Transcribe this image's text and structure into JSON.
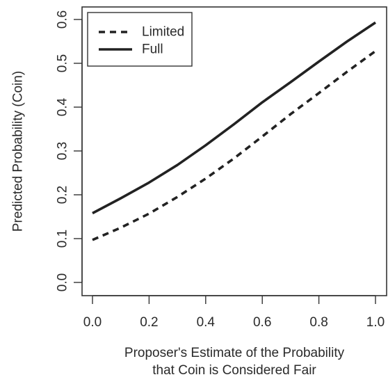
{
  "chart_data": {
    "type": "line",
    "title": "",
    "xlabel": [
      "Proposer's Estimate of the Probability",
      "that Coin is Considered Fair"
    ],
    "ylabel": "Predicted Probability (Coin)",
    "xlim": [
      0.0,
      1.0
    ],
    "ylim": [
      0.0,
      0.6
    ],
    "xticks": [
      "0.0",
      "0.2",
      "0.4",
      "0.6",
      "0.8",
      "1.0"
    ],
    "yticks": [
      "0.0",
      "0.1",
      "0.2",
      "0.3",
      "0.4",
      "0.5",
      "0.6"
    ],
    "legend_position": "top-left",
    "grid": false,
    "series": [
      {
        "name": "Limited",
        "style": "dashed",
        "color": "#222222",
        "x": [
          0.0,
          0.1,
          0.2,
          0.3,
          0.4,
          0.5,
          0.6,
          0.7,
          0.8,
          0.9,
          1.0
        ],
        "y": [
          0.097,
          0.125,
          0.157,
          0.195,
          0.237,
          0.283,
          0.333,
          0.384,
          0.432,
          0.481,
          0.528
        ]
      },
      {
        "name": "Full",
        "style": "solid",
        "color": "#222222",
        "x": [
          0.0,
          0.1,
          0.2,
          0.3,
          0.4,
          0.5,
          0.6,
          0.7,
          0.8,
          0.9,
          1.0
        ],
        "y": [
          0.158,
          0.192,
          0.228,
          0.268,
          0.313,
          0.361,
          0.411,
          0.457,
          0.504,
          0.55,
          0.593
        ]
      }
    ]
  }
}
